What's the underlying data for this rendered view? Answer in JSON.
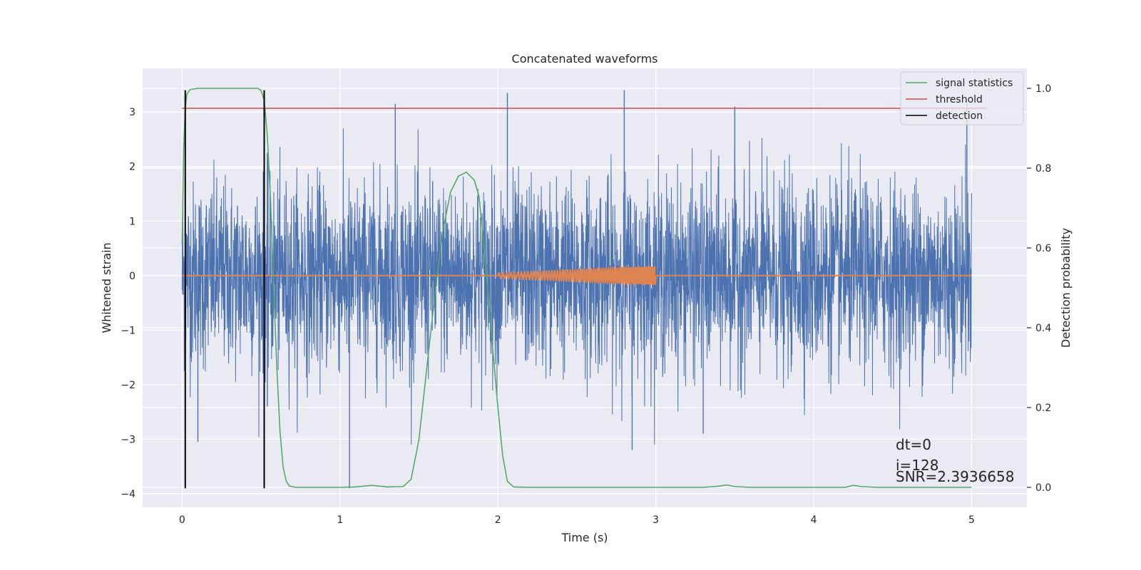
{
  "chart_data": {
    "type": "line",
    "title": "Concatenated waveforms",
    "xlabel": "Time (s)",
    "ylabel": "Whitened strain",
    "y2label": "Detection probability",
    "xlim": [
      -0.25,
      5.35
    ],
    "ylim": [
      -4.25,
      3.8
    ],
    "y2lim": [
      -0.05,
      1.05
    ],
    "xticks": [
      0,
      1,
      2,
      3,
      4,
      5
    ],
    "xtick_labels": [
      "0",
      "1",
      "2",
      "3",
      "4",
      "5"
    ],
    "yticks": [
      -4,
      -3,
      -2,
      -1,
      0,
      1,
      2,
      3
    ],
    "ytick_labels": [
      "−4",
      "−3",
      "−2",
      "−1",
      "0",
      "1",
      "2",
      "3"
    ],
    "y2ticks": [
      0.0,
      0.2,
      0.4,
      0.6,
      0.8,
      1.0
    ],
    "y2tick_labels": [
      "0.0",
      "0.2",
      "0.4",
      "0.6",
      "0.8",
      "1.0"
    ],
    "grid": true,
    "legend_position": "top-right",
    "legend": [
      {
        "label": "signal statistics",
        "color": "#55a868"
      },
      {
        "label": "threshold",
        "color": "#c44e52"
      },
      {
        "label": "detection",
        "color": "#000000"
      }
    ],
    "colors": {
      "background": "#eaeaf2",
      "grid": "#ffffff",
      "strain": "#4c72b0",
      "template": "#dd8452",
      "signal_statistics": "#55a868",
      "threshold": "#c44e52",
      "detection": "#000000"
    },
    "series": [
      {
        "name": "strain",
        "axis": "left",
        "x_range": [
          0,
          5
        ],
        "y_range": [
          -3.9,
          3.4
        ],
        "rms": 0.85,
        "spike_values": [
          {
            "x": 0.54,
            "y": 2.25
          },
          {
            "x": 0.54,
            "y": -2.4
          },
          {
            "x": 1.06,
            "y": -3.9
          },
          {
            "x": 1.35,
            "y": 3.15
          },
          {
            "x": 2.06,
            "y": 3.35
          },
          {
            "x": 2.8,
            "y": 3.4
          },
          {
            "x": 2.85,
            "y": -3.2
          },
          {
            "x": 3.3,
            "y": -2.9
          },
          {
            "x": 3.5,
            "y": 3.1
          },
          {
            "x": 4.97,
            "y": 3.15
          },
          {
            "x": 0.1,
            "y": -3.05
          }
        ]
      },
      {
        "name": "template",
        "axis": "left",
        "flat": [
          {
            "x": 0,
            "y": 0
          },
          {
            "x": 5,
            "y": 0
          }
        ],
        "chirp": {
          "x_start": 2.0,
          "x_end": 3.0,
          "amp_start": 0.05,
          "amp_end": 0.17
        }
      },
      {
        "name": "signal statistics",
        "axis": "right",
        "points": [
          [
            0.0,
            0.61
          ],
          [
            0.01,
            0.85
          ],
          [
            0.02,
            0.95
          ],
          [
            0.03,
            0.985
          ],
          [
            0.05,
            0.997
          ],
          [
            0.1,
            1.0
          ],
          [
            0.3,
            1.0
          ],
          [
            0.48,
            1.0
          ],
          [
            0.5,
            0.995
          ],
          [
            0.52,
            0.97
          ],
          [
            0.54,
            0.88
          ],
          [
            0.56,
            0.72
          ],
          [
            0.58,
            0.5
          ],
          [
            0.6,
            0.3
          ],
          [
            0.62,
            0.14
          ],
          [
            0.64,
            0.05
          ],
          [
            0.66,
            0.015
          ],
          [
            0.68,
            0.003
          ],
          [
            0.72,
            0.0
          ],
          [
            1.0,
            0.0
          ],
          [
            1.1,
            0.001
          ],
          [
            1.2,
            0.005
          ],
          [
            1.3,
            0.001
          ],
          [
            1.4,
            0.002
          ],
          [
            1.45,
            0.02
          ],
          [
            1.5,
            0.12
          ],
          [
            1.55,
            0.3
          ],
          [
            1.6,
            0.48
          ],
          [
            1.65,
            0.64
          ],
          [
            1.7,
            0.74
          ],
          [
            1.75,
            0.78
          ],
          [
            1.8,
            0.79
          ],
          [
            1.85,
            0.77
          ],
          [
            1.88,
            0.73
          ],
          [
            1.9,
            0.65
          ],
          [
            1.93,
            0.52
          ],
          [
            1.96,
            0.38
          ],
          [
            2.0,
            0.2
          ],
          [
            2.03,
            0.08
          ],
          [
            2.06,
            0.015
          ],
          [
            2.1,
            0.001
          ],
          [
            2.2,
            0.0
          ],
          [
            3.3,
            0.0
          ],
          [
            3.4,
            0.003
          ],
          [
            3.45,
            0.006
          ],
          [
            3.5,
            0.002
          ],
          [
            3.6,
            0.0
          ],
          [
            4.2,
            0.0
          ],
          [
            4.25,
            0.005
          ],
          [
            4.3,
            0.002
          ],
          [
            4.4,
            0.0
          ],
          [
            5.0,
            0.0
          ]
        ]
      },
      {
        "name": "threshold",
        "axis": "right",
        "points": [
          [
            0,
            0.95
          ],
          [
            5.1,
            0.95
          ]
        ]
      }
    ],
    "detections_x": [
      0.02,
      0.52
    ],
    "detection_ylim": [
      -3.9,
      3.4
    ]
  },
  "annotations": {
    "dt": "dt=0",
    "i": "i=128",
    "snr": "SNR=2.3936658"
  }
}
